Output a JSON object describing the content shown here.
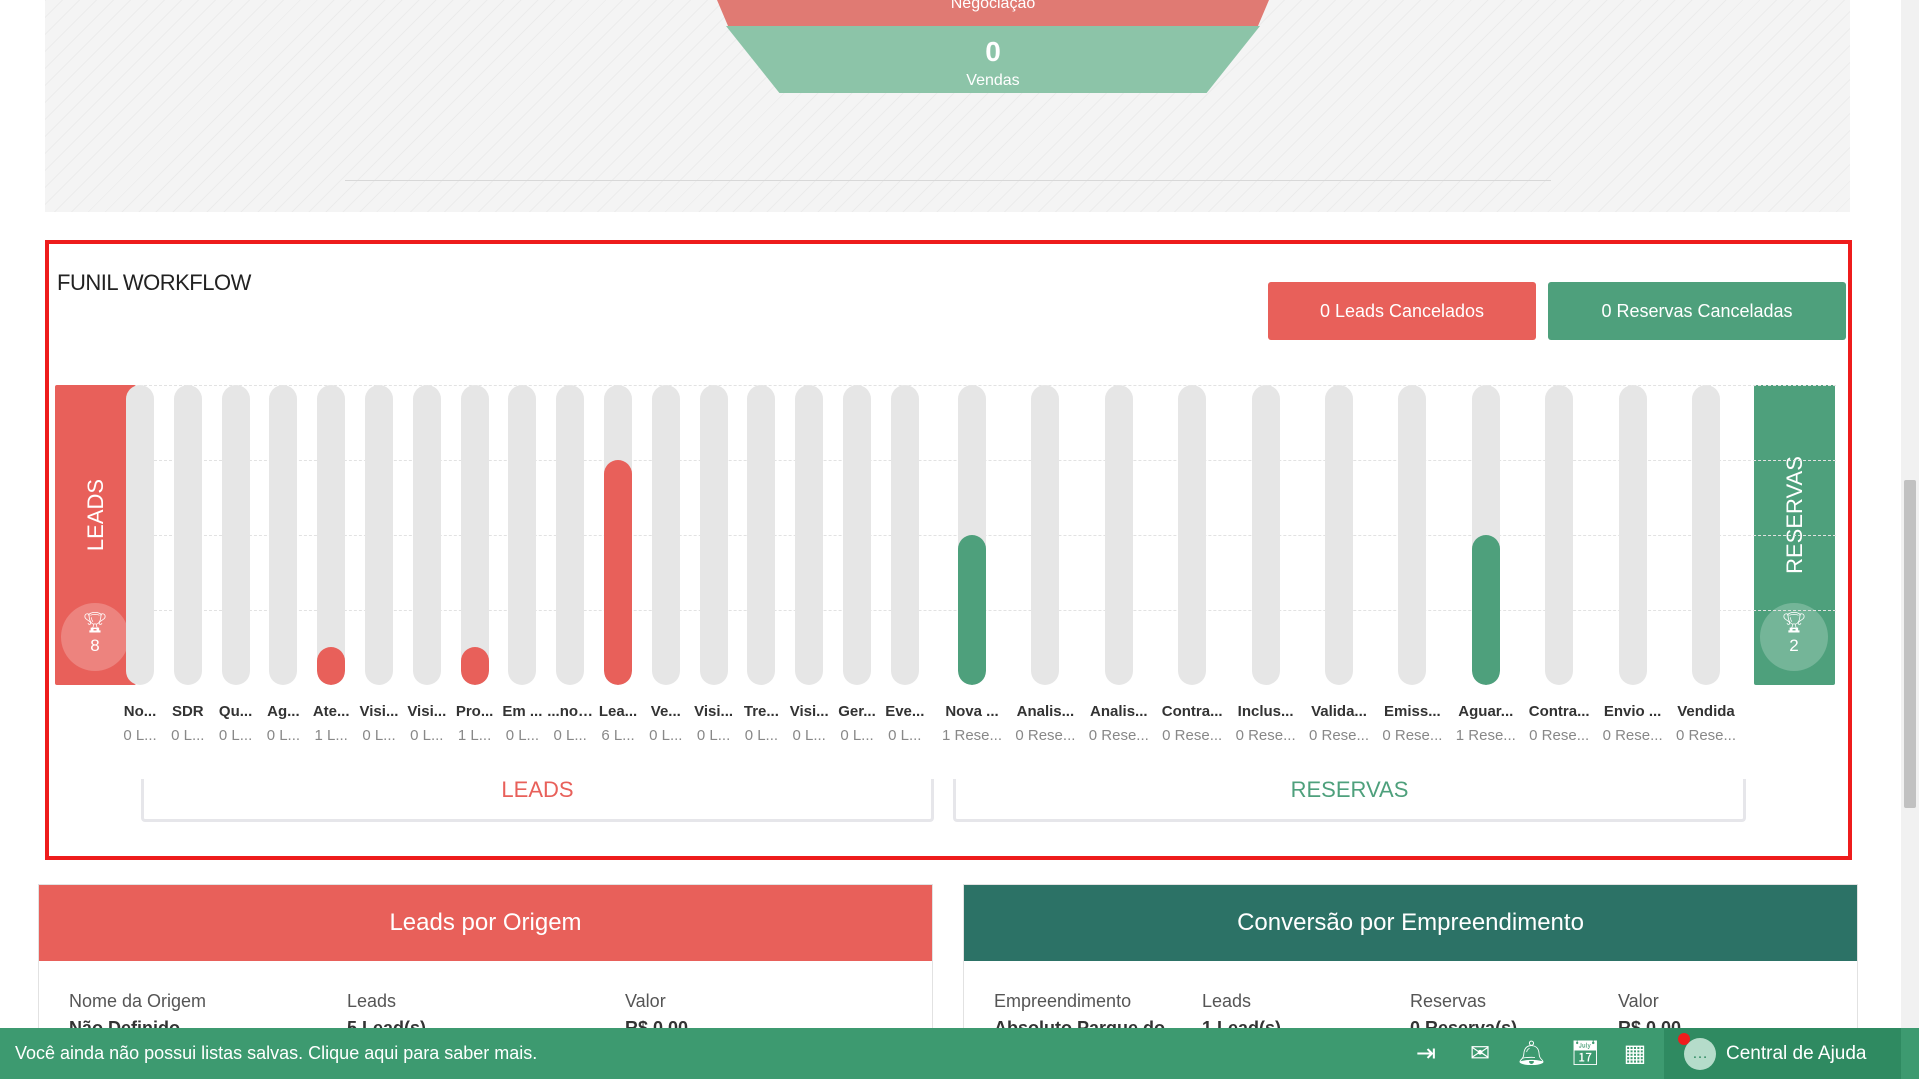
{
  "funnel_top": {
    "negotiation_label": "Negociação",
    "sales_count": "0",
    "sales_label": "Vendas"
  },
  "workflow": {
    "title": "FUNIL WORKFLOW",
    "cancel_leads_label": "0 Leads Cancelados",
    "cancel_reservations_label": "0 Reservas Canceladas",
    "leads_side_label": "LEADS",
    "leads_total": "8",
    "reservations_side_label": "RESERVAS",
    "reservations_total": "2",
    "group_leads_label": "LEADS",
    "group_reservations_label": "RESERVAS",
    "stages": [
      {
        "name": "No...",
        "count": "0 L...",
        "fill": 0,
        "type": "lead"
      },
      {
        "name": "SDR",
        "count": "0 L...",
        "fill": 0,
        "type": "lead"
      },
      {
        "name": "Qu...",
        "count": "0 L...",
        "fill": 0,
        "type": "lead"
      },
      {
        "name": "Ag...",
        "count": "0 L...",
        "fill": 0,
        "type": "lead"
      },
      {
        "name": "Ate...",
        "count": "1 L...",
        "fill": 0.125,
        "type": "lead"
      },
      {
        "name": "Visi...",
        "count": "0 L...",
        "fill": 0,
        "type": "lead"
      },
      {
        "name": "Visi...",
        "count": "0 L...",
        "fill": 0,
        "type": "lead"
      },
      {
        "name": "Pro...",
        "count": "1 L...",
        "fill": 0.125,
        "type": "lead"
      },
      {
        "name": "Em ...",
        "count": "0 L...",
        "fill": 0,
        "type": "lead"
      },
      {
        "name": "...nov...",
        "count": "0 L...",
        "fill": 0,
        "type": "lead"
      },
      {
        "name": "Lea...",
        "count": "6 L...",
        "fill": 0.75,
        "type": "lead"
      },
      {
        "name": "Ve...",
        "count": "0 L...",
        "fill": 0,
        "type": "lead"
      },
      {
        "name": "Visi...",
        "count": "0 L...",
        "fill": 0,
        "type": "lead"
      },
      {
        "name": "Tre...",
        "count": "0 L...",
        "fill": 0,
        "type": "lead"
      },
      {
        "name": "Visi...",
        "count": "0 L...",
        "fill": 0,
        "type": "lead"
      },
      {
        "name": "Ger...",
        "count": "0 L...",
        "fill": 0,
        "type": "lead"
      },
      {
        "name": "Eve...",
        "count": "0 L...",
        "fill": 0,
        "type": "lead"
      },
      {
        "name": "Nova ...",
        "count": "1 Rese...",
        "fill": 0.5,
        "type": "reserva"
      },
      {
        "name": "Analis...",
        "count": "0 Rese...",
        "fill": 0,
        "type": "reserva"
      },
      {
        "name": "Analis...",
        "count": "0 Rese...",
        "fill": 0,
        "type": "reserva"
      },
      {
        "name": "Contra...",
        "count": "0 Rese...",
        "fill": 0,
        "type": "reserva"
      },
      {
        "name": "Inclus...",
        "count": "0 Rese...",
        "fill": 0,
        "type": "reserva"
      },
      {
        "name": "Valida...",
        "count": "0 Rese...",
        "fill": 0,
        "type": "reserva"
      },
      {
        "name": "Emiss...",
        "count": "0 Rese...",
        "fill": 0,
        "type": "reserva"
      },
      {
        "name": "Aguar...",
        "count": "1 Rese...",
        "fill": 0.5,
        "type": "reserva"
      },
      {
        "name": "Contra...",
        "count": "0 Rese...",
        "fill": 0,
        "type": "reserva"
      },
      {
        "name": "Envio ...",
        "count": "0 Rese...",
        "fill": 0,
        "type": "reserva"
      },
      {
        "name": "Vendida",
        "count": "0 Rese...",
        "fill": 0,
        "type": "reserva"
      }
    ]
  },
  "leads_por_origem": {
    "title": "Leads por Origem",
    "columns": [
      "Nome da Origem",
      "Leads",
      "Valor"
    ],
    "row": [
      "Não Definido",
      "5 Lead(s)",
      "R$ 0,00"
    ]
  },
  "conversao_empreendimento": {
    "title": "Conversão por Empreendimento",
    "columns": [
      "Empreendimento",
      "Leads",
      "Reservas",
      "Valor"
    ],
    "row": [
      "Absoluto Parque do",
      "1 Lead(s)",
      "0 Reserva(s)",
      "R$ 0,00"
    ]
  },
  "status_bar": {
    "message": "Você ainda não possui listas salvas. Clique aqui para saber mais.",
    "help_label": "Central de Ajuda"
  },
  "colors": {
    "lead_red": "#e8605a",
    "reserva_green": "#4ea07c",
    "highlight_border": "#ee1c1c"
  }
}
